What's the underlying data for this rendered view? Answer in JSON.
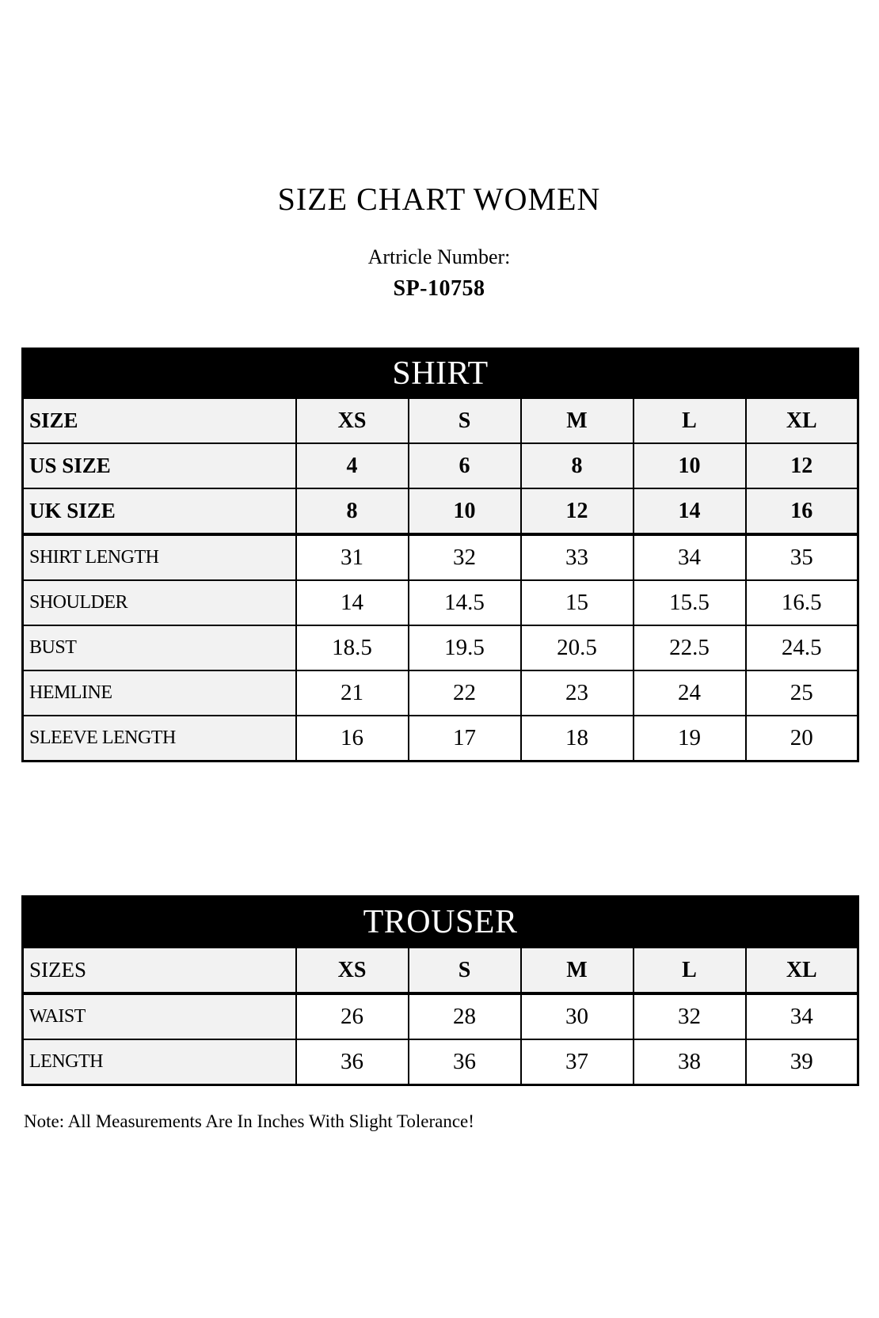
{
  "header": {
    "title": "SIZE CHART WOMEN",
    "article_label": "Artricle Number:",
    "article_number": "SP-10758"
  },
  "shirt": {
    "caption": "SHIRT",
    "columns": [
      "XS",
      "S",
      "M",
      "L",
      "XL"
    ],
    "rows": [
      {
        "label": "SIZE",
        "values": [
          "XS",
          "S",
          "M",
          "L",
          "XL"
        ]
      },
      {
        "label": "US SIZE",
        "values": [
          "4",
          "6",
          "8",
          "10",
          "12"
        ]
      },
      {
        "label": "UK SIZE",
        "values": [
          "8",
          "10",
          "12",
          "14",
          "16"
        ]
      },
      {
        "label": "SHIRT LENGTH",
        "values": [
          "31",
          "32",
          "33",
          "34",
          "35"
        ]
      },
      {
        "label": "SHOULDER",
        "values": [
          "14",
          "14.5",
          "15",
          "15.5",
          "16.5"
        ]
      },
      {
        "label": "BUST",
        "values": [
          "18.5",
          "19.5",
          "20.5",
          "22.5",
          "24.5"
        ]
      },
      {
        "label": "HEMLINE",
        "values": [
          "21",
          "22",
          "23",
          "24",
          "25"
        ]
      },
      {
        "label": "SLEEVE LENGTH",
        "values": [
          "16",
          "17",
          "18",
          "19",
          "20"
        ]
      }
    ]
  },
  "trouser": {
    "caption": "TROUSER",
    "columns": [
      "XS",
      "S",
      "M",
      "L",
      "XL"
    ],
    "rows": [
      {
        "label": "SIZES",
        "values": [
          "XS",
          "S",
          "M",
          "L",
          "XL"
        ]
      },
      {
        "label": "WAIST",
        "values": [
          "26",
          "28",
          "30",
          "32",
          "34"
        ]
      },
      {
        "label": "LENGTH",
        "values": [
          "36",
          "36",
          "37",
          "38",
          "39"
        ]
      }
    ]
  },
  "footer": {
    "note": "Note: All Measurements Are In Inches With Slight Tolerance!"
  },
  "colors": {
    "table_header_bg": "#000000",
    "table_header_text": "#ffffff",
    "label_row_bg": "#f2f2f2",
    "value_cell_bg": "#ffffff",
    "border": "#000000",
    "page_bg": "#ffffff",
    "text": "#000000"
  }
}
